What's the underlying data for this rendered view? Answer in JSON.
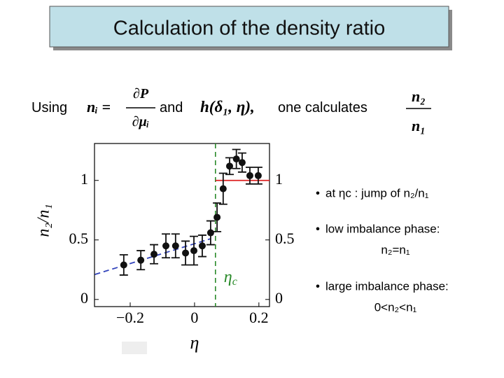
{
  "title": "Calculation of the density ratio",
  "intro": {
    "using": "Using",
    "formula_lhs": "nᵢ =",
    "formula_num": "∂P",
    "formula_den": "∂μᵢ",
    "and": "and",
    "function": "h(δ₁, η),",
    "calculates": "one calculates",
    "ratio_num": "n₂",
    "ratio_den": "n₁"
  },
  "bullets": [
    {
      "lines": [
        "at ηc : jump of n₂/n₁"
      ]
    },
    {
      "lines": [
        "low imbalance phase:",
        "n₂=n₁"
      ]
    },
    {
      "lines": [
        "large imbalance phase:",
        "0<n₂<n₁"
      ]
    }
  ],
  "chart_data": {
    "type": "scatter",
    "xlabel": "η",
    "ylabel": "n₂/n₁",
    "x": [
      -0.22,
      -0.167,
      -0.126,
      -0.089,
      -0.059,
      -0.028,
      -0.002,
      0.024,
      0.05,
      0.07,
      0.089,
      0.109,
      0.13,
      0.148,
      0.172,
      0.198
    ],
    "series": [
      {
        "color": "#111111",
        "values": [
          0.29,
          0.33,
          0.38,
          0.45,
          0.45,
          0.39,
          0.41,
          0.45,
          0.56,
          0.69,
          0.93,
          1.12,
          1.18,
          1.15,
          1.04,
          1.04
        ],
        "errors": [
          0.085,
          0.08,
          0.08,
          0.1,
          0.1,
          0.1,
          0.12,
          0.09,
          0.1,
          0.12,
          0.13,
          0.07,
          0.08,
          0.08,
          0.07,
          0.07
        ]
      }
    ],
    "fit_line": {
      "x": [
        -0.31,
        0.05
      ],
      "y": [
        0.21,
        0.51
      ],
      "color": "#3344bb"
    },
    "jump_line": {
      "x": [
        0.065,
        0.233
      ],
      "y": [
        1,
        1
      ],
      "color": "#dd2222"
    },
    "eta_c": {
      "x": 0.065,
      "color": "#2a8a2a",
      "symbol": "η",
      "sub": "c"
    },
    "xlim": [
      -0.311,
      0.233
    ],
    "ylim": [
      -0.06,
      1.31
    ],
    "y2lim": [
      -0.06,
      1.31
    ],
    "xticks": [
      {
        "value": -0.2,
        "label": "−0.2"
      },
      0,
      0.2
    ],
    "yticks": [
      0,
      0.5,
      1
    ],
    "y2ticks": [
      0,
      0.5,
      1
    ]
  }
}
